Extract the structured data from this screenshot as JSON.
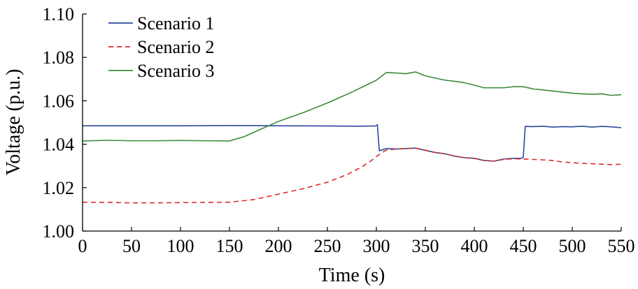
{
  "chart_data": {
    "type": "line",
    "xlabel": "Time (s)",
    "ylabel": "Voltage (p.u.)",
    "xlim": [
      0,
      550
    ],
    "ylim": [
      1.0,
      1.1
    ],
    "xticks": [
      "0",
      "50",
      "100",
      "150",
      "200",
      "250",
      "300",
      "350",
      "400",
      "450",
      "500",
      "550"
    ],
    "yticks": [
      "1.00",
      "1.02",
      "1.04",
      "1.06",
      "1.08",
      "1.10"
    ],
    "grid": false,
    "legend_position": "top-left",
    "series": [
      {
        "name": "Scenario 1",
        "color": "#2b4a9b",
        "dash": "solid",
        "points": [
          [
            0,
            1.0485
          ],
          [
            50,
            1.0485
          ],
          [
            100,
            1.0485
          ],
          [
            150,
            1.0486
          ],
          [
            200,
            1.0485
          ],
          [
            250,
            1.0484
          ],
          [
            280,
            1.0483
          ],
          [
            299,
            1.0484
          ],
          [
            301,
            1.049
          ],
          [
            303,
            1.037
          ],
          [
            310,
            1.038
          ],
          [
            320,
            1.0378
          ],
          [
            330,
            1.038
          ],
          [
            340,
            1.0382
          ],
          [
            350,
            1.0372
          ],
          [
            360,
            1.0362
          ],
          [
            370,
            1.0356
          ],
          [
            380,
            1.0345
          ],
          [
            390,
            1.0338
          ],
          [
            400,
            1.0335
          ],
          [
            410,
            1.0325
          ],
          [
            420,
            1.0322
          ],
          [
            430,
            1.0332
          ],
          [
            440,
            1.0335
          ],
          [
            448,
            1.0335
          ],
          [
            450,
            1.034
          ],
          [
            452,
            1.0482
          ],
          [
            460,
            1.0481
          ],
          [
            470,
            1.0483
          ],
          [
            480,
            1.0479
          ],
          [
            490,
            1.0481
          ],
          [
            500,
            1.048
          ],
          [
            510,
            1.0483
          ],
          [
            520,
            1.0479
          ],
          [
            530,
            1.0482
          ],
          [
            540,
            1.048
          ],
          [
            550,
            1.0476
          ]
        ]
      },
      {
        "name": "Scenario 2",
        "color": "#dc2a2e",
        "dash": "dashed",
        "points": [
          [
            0,
            1.0133
          ],
          [
            25,
            1.0132
          ],
          [
            50,
            1.013
          ],
          [
            75,
            1.013
          ],
          [
            100,
            1.0131
          ],
          [
            125,
            1.0132
          ],
          [
            150,
            1.0133
          ],
          [
            175,
            1.0145
          ],
          [
            200,
            1.017
          ],
          [
            225,
            1.0195
          ],
          [
            250,
            1.0225
          ],
          [
            270,
            1.026
          ],
          [
            285,
            1.0295
          ],
          [
            295,
            1.0325
          ],
          [
            305,
            1.036
          ],
          [
            310,
            1.0372
          ],
          [
            320,
            1.0378
          ],
          [
            330,
            1.038
          ],
          [
            340,
            1.0382
          ],
          [
            350,
            1.0372
          ],
          [
            360,
            1.0362
          ],
          [
            370,
            1.0356
          ],
          [
            380,
            1.0345
          ],
          [
            390,
            1.0338
          ],
          [
            400,
            1.0335
          ],
          [
            410,
            1.0325
          ],
          [
            420,
            1.0322
          ],
          [
            430,
            1.033
          ],
          [
            440,
            1.0333
          ],
          [
            450,
            1.0332
          ],
          [
            460,
            1.033
          ],
          [
            470,
            1.0328
          ],
          [
            480,
            1.0325
          ],
          [
            490,
            1.0318
          ],
          [
            500,
            1.0315
          ],
          [
            510,
            1.0312
          ],
          [
            520,
            1.031
          ],
          [
            530,
            1.0308
          ],
          [
            540,
            1.0306
          ],
          [
            550,
            1.0308
          ]
        ]
      },
      {
        "name": "Scenario 3",
        "color": "#3d8b3d",
        "dash": "solid",
        "points": [
          [
            0,
            1.0415
          ],
          [
            25,
            1.0418
          ],
          [
            50,
            1.0416
          ],
          [
            75,
            1.0416
          ],
          [
            100,
            1.0417
          ],
          [
            125,
            1.0416
          ],
          [
            150,
            1.0415
          ],
          [
            165,
            1.0435
          ],
          [
            180,
            1.0465
          ],
          [
            200,
            1.0505
          ],
          [
            225,
            1.0545
          ],
          [
            250,
            1.059
          ],
          [
            275,
            1.064
          ],
          [
            300,
            1.0695
          ],
          [
            310,
            1.073
          ],
          [
            320,
            1.0728
          ],
          [
            330,
            1.0725
          ],
          [
            340,
            1.0733
          ],
          [
            350,
            1.0715
          ],
          [
            360,
            1.0705
          ],
          [
            370,
            1.0695
          ],
          [
            380,
            1.069
          ],
          [
            390,
            1.0683
          ],
          [
            400,
            1.0672
          ],
          [
            410,
            1.066
          ],
          [
            420,
            1.066
          ],
          [
            430,
            1.066
          ],
          [
            440,
            1.0665
          ],
          [
            450,
            1.0665
          ],
          [
            460,
            1.0655
          ],
          [
            470,
            1.065
          ],
          [
            480,
            1.0645
          ],
          [
            490,
            1.064
          ],
          [
            500,
            1.0635
          ],
          [
            510,
            1.0632
          ],
          [
            520,
            1.063
          ],
          [
            530,
            1.0632
          ],
          [
            540,
            1.0625
          ],
          [
            550,
            1.0628
          ]
        ]
      }
    ]
  }
}
